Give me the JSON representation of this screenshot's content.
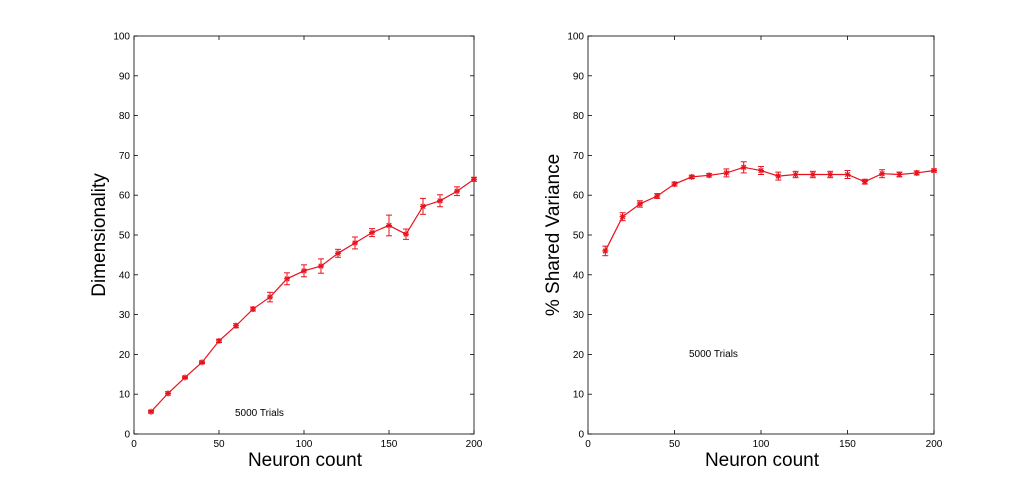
{
  "chart_data": [
    {
      "type": "line",
      "xlabel": "Neuron count",
      "ylabel": "Dimensionality",
      "xlim": [
        0,
        200
      ],
      "ylim": [
        0,
        100
      ],
      "xticks": [
        0,
        50,
        100,
        150,
        200
      ],
      "yticks": [
        0,
        10,
        20,
        30,
        40,
        50,
        60,
        70,
        80,
        90,
        100
      ],
      "annotation": "5000 Trials",
      "color": "#e8121e",
      "series": [
        {
          "x": [
            10,
            20,
            30,
            40,
            50,
            60,
            70,
            80,
            90,
            100,
            110,
            120,
            130,
            140,
            150,
            160,
            170,
            180,
            190,
            200
          ],
          "y": [
            5.6,
            10.2,
            14.2,
            18.0,
            23.4,
            27.2,
            31.4,
            34.4,
            39.0,
            41.0,
            42.2,
            45.4,
            48.0,
            50.6,
            52.4,
            50.2,
            57.2,
            58.6,
            61.0,
            64.0
          ],
          "err": [
            0.3,
            0.4,
            0.3,
            0.3,
            0.4,
            0.5,
            0.5,
            1.2,
            1.5,
            1.5,
            1.8,
            1.0,
            1.5,
            1.0,
            2.6,
            1.3,
            2.0,
            1.5,
            1.1,
            0.5
          ]
        }
      ]
    },
    {
      "type": "line",
      "xlabel": "Neuron count",
      "ylabel": "% Shared Variance",
      "xlim": [
        0,
        200
      ],
      "ylim": [
        0,
        100
      ],
      "xticks": [
        0,
        50,
        100,
        150,
        200
      ],
      "yticks": [
        0,
        10,
        20,
        30,
        40,
        50,
        60,
        70,
        80,
        90,
        100
      ],
      "annotation": "5000 Trials",
      "color": "#e8121e",
      "series": [
        {
          "x": [
            10,
            20,
            30,
            40,
            50,
            60,
            70,
            80,
            90,
            100,
            110,
            120,
            130,
            140,
            150,
            160,
            170,
            180,
            190,
            200
          ],
          "y": [
            46.0,
            54.6,
            57.8,
            59.8,
            62.8,
            64.6,
            65.0,
            65.6,
            67.0,
            66.2,
            64.8,
            65.2,
            65.2,
            65.2,
            65.2,
            63.4,
            65.4,
            65.2,
            65.6,
            66.2
          ],
          "err": [
            1.2,
            1.0,
            0.8,
            0.6,
            0.5,
            0.4,
            0.4,
            1.0,
            1.4,
            1.0,
            1.0,
            0.8,
            0.8,
            0.8,
            1.0,
            0.6,
            1.0,
            0.6,
            0.5,
            0.4
          ]
        }
      ]
    }
  ]
}
